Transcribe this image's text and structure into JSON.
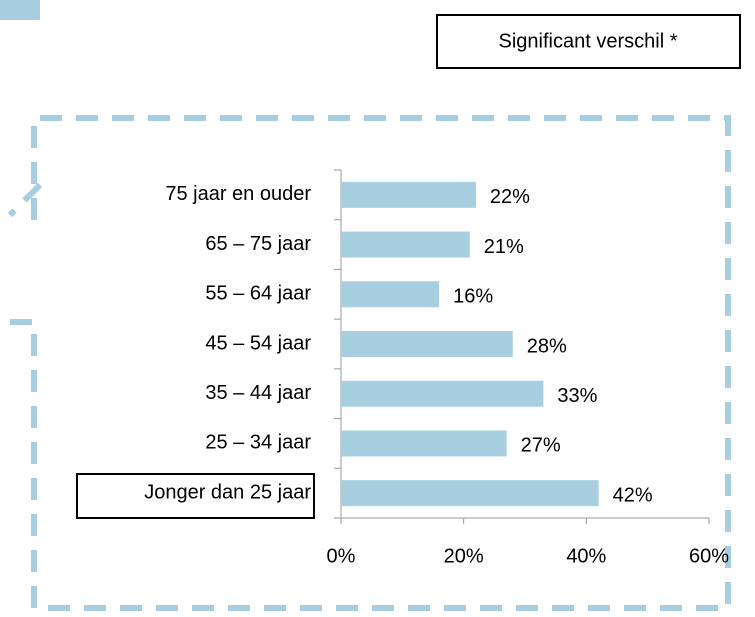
{
  "chart_data": {
    "type": "bar",
    "orientation": "horizontal",
    "annotation": "Significant verschil *",
    "categories": [
      "75 jaar en ouder",
      "65 – 75 jaar",
      "55 – 64 jaar",
      "45 – 54 jaar",
      "35 – 44 jaar",
      "25 – 34 jaar",
      "Jonger dan 25 jaar"
    ],
    "values": [
      22,
      21,
      16,
      28,
      33,
      27,
      42
    ],
    "value_labels": [
      "22%",
      "21%",
      "16%",
      "28%",
      "33%",
      "27%",
      "42%"
    ],
    "color": "#a8cfe0",
    "xlim": [
      0,
      60
    ],
    "xticks": [
      {
        "value": 0,
        "label": "0%"
      },
      {
        "value": 20,
        "label": "20%"
      },
      {
        "value": 40,
        "label": "40%"
      },
      {
        "value": 60,
        "label": "60%"
      }
    ],
    "grid": false
  }
}
